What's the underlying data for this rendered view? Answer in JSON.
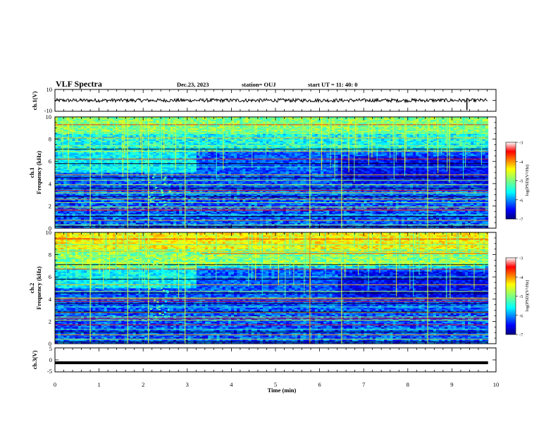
{
  "header": {
    "title": "VLF Spectra",
    "date": "Dec.23, 2023",
    "station": "station= OUJ",
    "start": "start  UT =   11: 40: 0"
  },
  "chart_data": [
    {
      "type": "line",
      "panel": "ch1_waveform",
      "ylabel": "ch.1(V)",
      "ylim": [
        -10,
        10
      ],
      "yticks": [
        "10",
        "-10"
      ],
      "description_level": 0,
      "spike_at_min": 9.34
    },
    {
      "type": "heatmap",
      "panel": "ch1_spectrogram",
      "ylabel_line1": "ch.1",
      "ylabel_line2": "Frequency (kHz)",
      "ylim": [
        0,
        10
      ],
      "yticks": [
        "0",
        "2",
        "4",
        "6",
        "8",
        "10"
      ],
      "colorbar": {
        "label": "log(PSD)(V²/Hz)",
        "ticks": [
          "-3",
          "-4",
          "-5",
          "-6",
          "-7"
        ],
        "range": [
          -7,
          -3
        ]
      }
    },
    {
      "type": "heatmap",
      "panel": "ch2_spectrogram",
      "ylabel_line1": "ch.2",
      "ylabel_line2": "Frequency (kHz)",
      "ylim": [
        0,
        10
      ],
      "yticks": [
        "0",
        "2",
        "4",
        "6",
        "8",
        "10"
      ],
      "colorbar": {
        "label": "log(PSD)(V²/Hz)",
        "ticks": [
          "-3",
          "-4",
          "-5",
          "-6",
          "-7"
        ],
        "range": [
          -7,
          -3
        ]
      }
    },
    {
      "type": "line",
      "panel": "ch3_waveform",
      "ylabel": "ch.3(V)",
      "ylim": [
        -5,
        5
      ],
      "yticks": [
        "5",
        "0",
        "-5"
      ],
      "level": -1.2
    }
  ],
  "xaxis": {
    "label": "Time (min)",
    "range": [
      0,
      10
    ],
    "ticks": [
      "0",
      "1",
      "2",
      "3",
      "4",
      "5",
      "6",
      "7",
      "8",
      "9",
      "10"
    ]
  }
}
